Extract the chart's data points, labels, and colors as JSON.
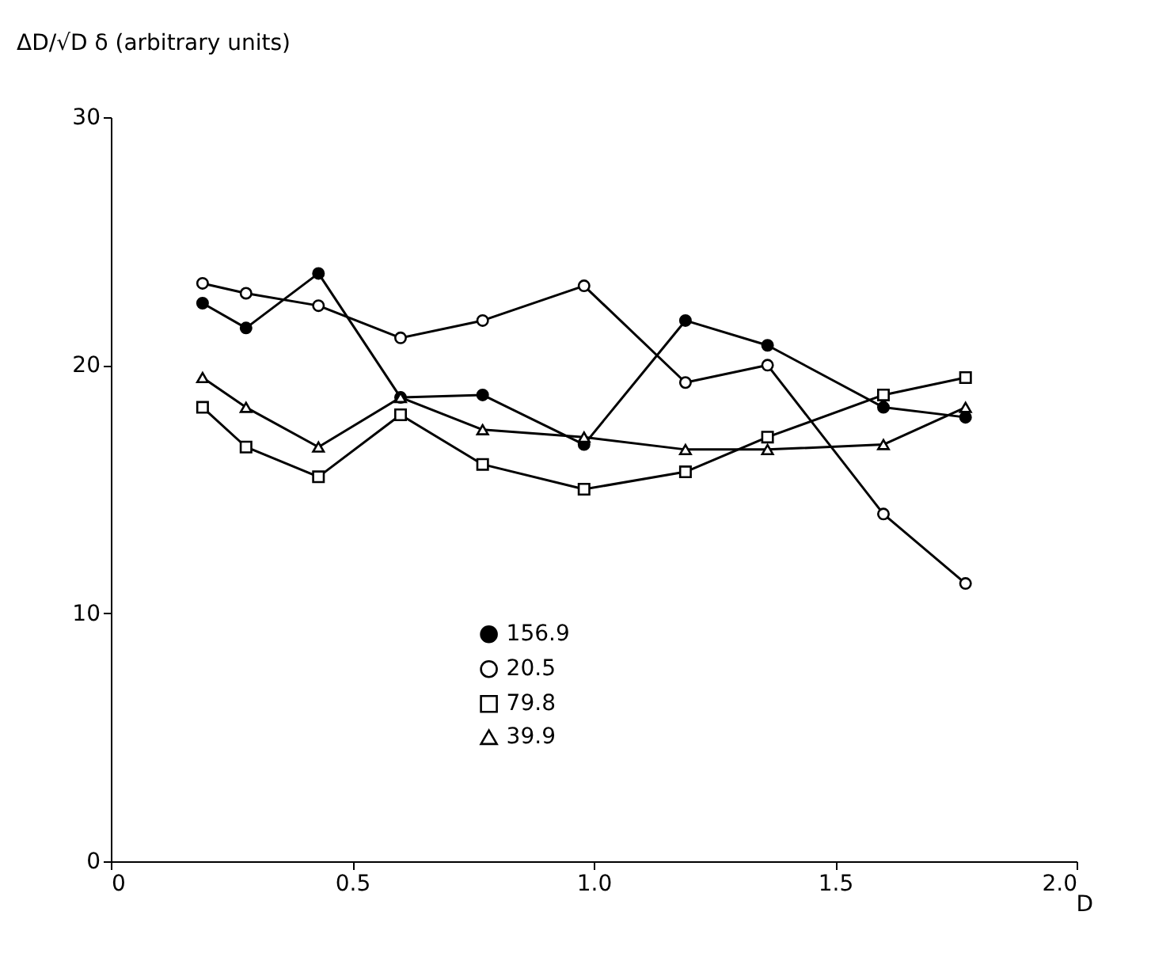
{
  "chart_data": {
    "type": "line",
    "xlabel": "D",
    "ylabel": "ΔD/√D δ (arbitrary units)",
    "x": [
      0.19,
      0.28,
      0.43,
      0.6,
      0.77,
      0.98,
      1.19,
      1.36,
      1.6,
      1.77
    ],
    "series": [
      {
        "name": "156.9",
        "color": "#000000",
        "marker": "circle",
        "values": [
          22.5,
          21.5,
          23.7,
          18.7,
          18.8,
          16.8,
          21.8,
          20.8,
          18.3,
          17.9
        ]
      },
      {
        "name": "20.5",
        "color": "#000000",
        "marker": "circle",
        "values": [
          23.3,
          22.9,
          22.4,
          21.1,
          21.8,
          23.2,
          19.3,
          20.0,
          14.0,
          11.2
        ]
      },
      {
        "name": "79.8",
        "color": "#000000",
        "marker": "square",
        "values": [
          18.3,
          16.7,
          15.5,
          18.0,
          16.0,
          15.0,
          15.7,
          17.1,
          18.8,
          19.5
        ]
      },
      {
        "name": "39.9",
        "color": "#000000",
        "marker": "triangle",
        "values": [
          19.5,
          18.3,
          16.7,
          18.7,
          17.4,
          17.1,
          16.6,
          16.6,
          16.8,
          18.3
        ]
      }
    ],
    "xlim": [
      0,
      2
    ],
    "ylim": [
      0,
      30
    ],
    "xticks": [
      0,
      0.5,
      {
        "value": 1,
        "label": "1.0"
      },
      1.5,
      {
        "value": 2,
        "label": "2.0"
      }
    ],
    "yticks": [
      0,
      10,
      20,
      30
    ],
    "grid": false,
    "legend": "bottom",
    "line_style": "solid"
  }
}
